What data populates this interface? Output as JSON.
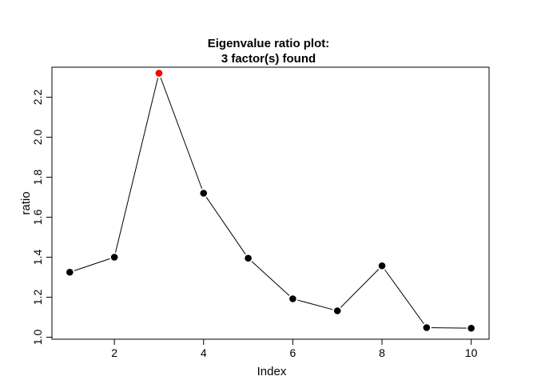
{
  "chart_data": {
    "type": "line",
    "title_lines": [
      "Eigenvalue ratio plot:",
      "3 factor(s) found"
    ],
    "xlabel": "Index",
    "ylabel": "ratio",
    "xlim": [
      0.6,
      10.4
    ],
    "ylim": [
      0.99,
      2.35
    ],
    "x_ticks": [
      2,
      4,
      6,
      8,
      10
    ],
    "y_ticks": [
      1.0,
      1.2,
      1.4,
      1.6,
      1.8,
      2.0,
      2.2
    ],
    "grid": false,
    "series": [
      {
        "x": [
          1,
          2,
          3,
          4,
          5,
          6,
          7,
          8,
          9,
          10
        ],
        "values": [
          1.325,
          1.4,
          2.32,
          1.72,
          1.395,
          1.192,
          1.132,
          1.357,
          1.048,
          1.045
        ]
      }
    ],
    "highlight": {
      "x": 3,
      "y": 2.32
    },
    "colors": {
      "points": "#000000",
      "highlight": "#ff0000",
      "line": "#000000"
    }
  }
}
